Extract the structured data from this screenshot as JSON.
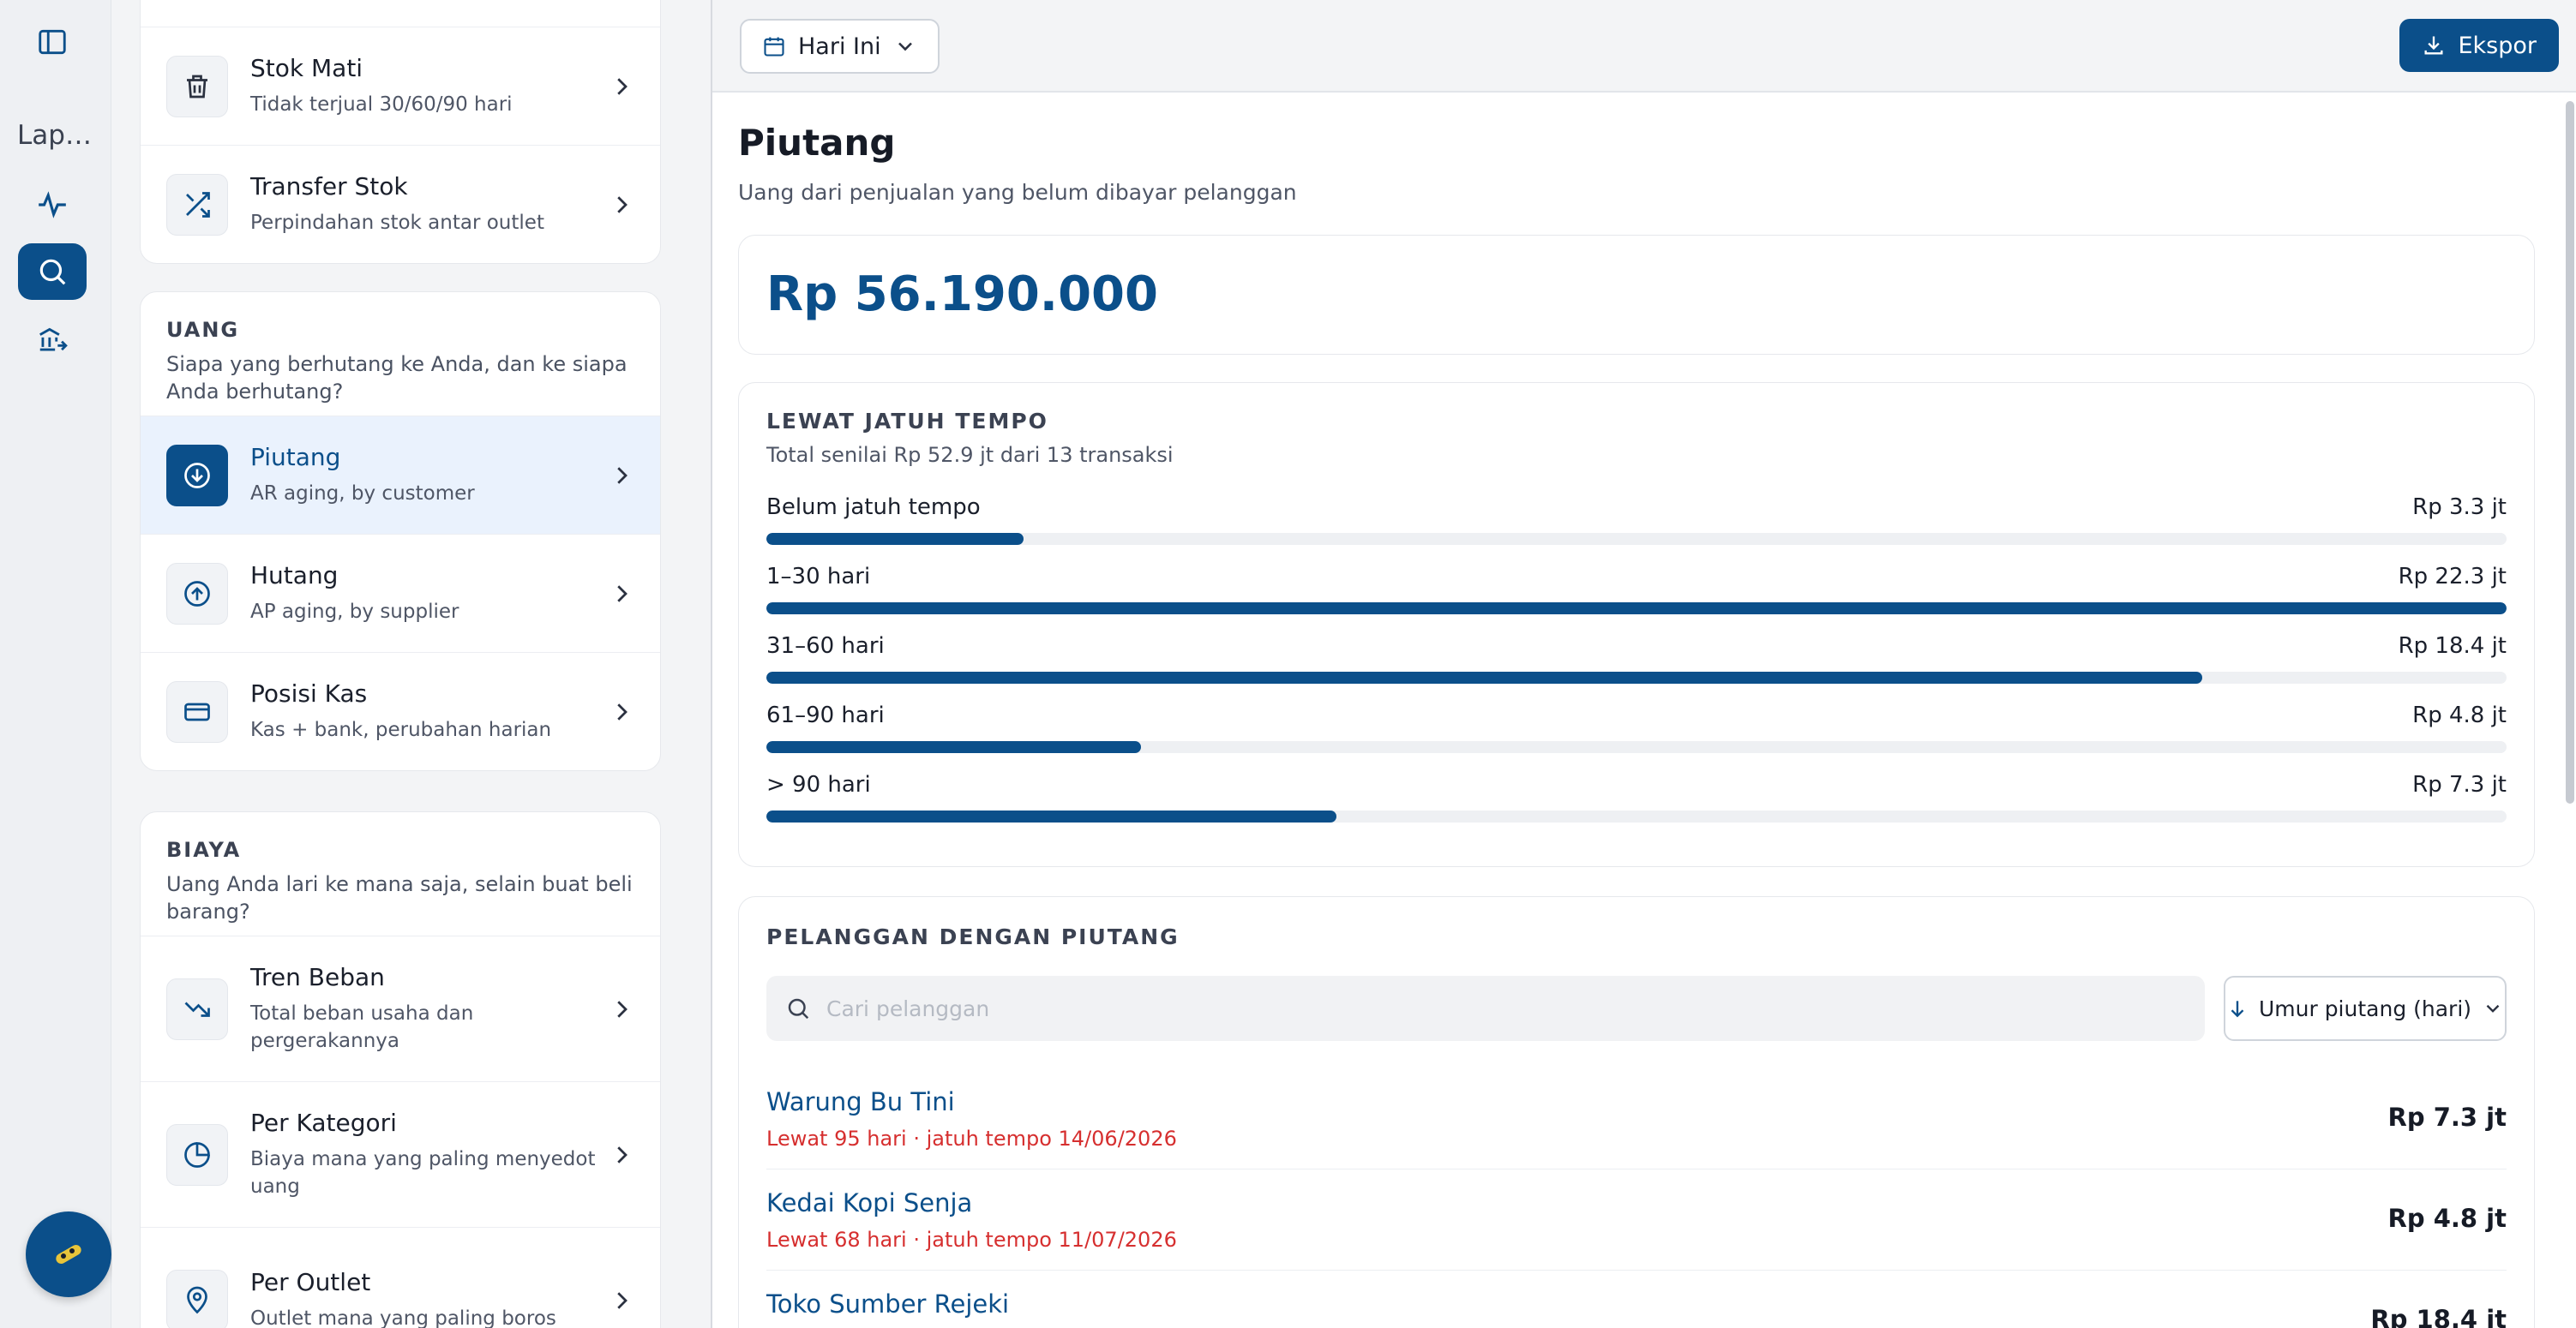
{
  "rail": {
    "label": "Lap…",
    "icons": [
      "sidebar-toggle-icon",
      "activity-icon",
      "search-icon",
      "bank-transfer-icon",
      "app-logo-icon"
    ]
  },
  "nav": {
    "stock_items": [
      {
        "title": "Stok Mati",
        "subtitle": "Tidak terjual 30/60/90 hari",
        "icon": "trash-icon"
      },
      {
        "title": "Transfer Stok",
        "subtitle": "Perpindahan stok antar outlet",
        "icon": "shuffle-icon"
      }
    ],
    "uang": {
      "title": "UANG",
      "subtitle": "Siapa yang berhutang ke Anda, dan ke siapa Anda berhutang?",
      "items": [
        {
          "title": "Piutang",
          "subtitle": "AR aging, by customer",
          "icon": "arrow-down-circle-icon"
        },
        {
          "title": "Hutang",
          "subtitle": "AP aging, by supplier",
          "icon": "arrow-up-circle-icon"
        },
        {
          "title": "Posisi Kas",
          "subtitle": "Kas + bank, perubahan harian",
          "icon": "credit-card-icon"
        }
      ]
    },
    "biaya": {
      "title": "BIAYA",
      "subtitle": "Uang Anda lari ke mana saja, selain buat beli barang?",
      "items": [
        {
          "title": "Tren Beban",
          "subtitle": "Total beban usaha dan pergerakannya",
          "icon": "trending-down-icon"
        },
        {
          "title": "Per Kategori",
          "subtitle": "Biaya mana yang paling menyedot uang",
          "icon": "pie-chart-icon"
        },
        {
          "title": "Per Outlet",
          "subtitle": "Outlet mana yang paling boros",
          "icon": "map-pin-icon"
        }
      ]
    }
  },
  "toolbar": {
    "date_label": "Hari Ini",
    "export_label": "Ekspor"
  },
  "page": {
    "title": "Piutang",
    "subtitle": "Uang dari penjualan yang belum dibayar pelanggan",
    "total": "Rp 56.190.000"
  },
  "aging": {
    "title": "LEWAT JATUH TEMPO",
    "subtitle": "Total senilai Rp 52.9 jt dari 13 transaksi",
    "buckets": [
      {
        "label": "Belum jatuh tempo",
        "value": "Rp 3.3 jt",
        "amount": 3.3
      },
      {
        "label": "1–30 hari",
        "value": "Rp 22.3 jt",
        "amount": 22.3
      },
      {
        "label": "31–60 hari",
        "value": "Rp 18.4 jt",
        "amount": 18.4
      },
      {
        "label": "61–90 hari",
        "value": "Rp 4.8 jt",
        "amount": 4.8
      },
      {
        "label": "> 90 hari",
        "value": "Rp 7.3 jt",
        "amount": 7.3
      }
    ]
  },
  "customers": {
    "title": "PELANGGAN DENGAN PIUTANG",
    "search_placeholder": "Cari pelanggan",
    "sort_label": "Umur piutang (hari)",
    "rows": [
      {
        "name": "Warung Bu Tini",
        "status": "Lewat 95 hari · jatuh tempo 14/06/2026",
        "amount": "Rp 7.3 jt"
      },
      {
        "name": "Kedai Kopi Senja",
        "status": "Lewat 68 hari · jatuh tempo 11/07/2026",
        "amount": "Rp 4.8 jt"
      },
      {
        "name": "Toko Sumber Rejeki",
        "status": "",
        "amount": "Rp 18.4 jt"
      }
    ]
  },
  "colors": {
    "accent": "#0b4f8a",
    "overdue": "#d62f2f",
    "active_bg": "#eaf2fd"
  }
}
